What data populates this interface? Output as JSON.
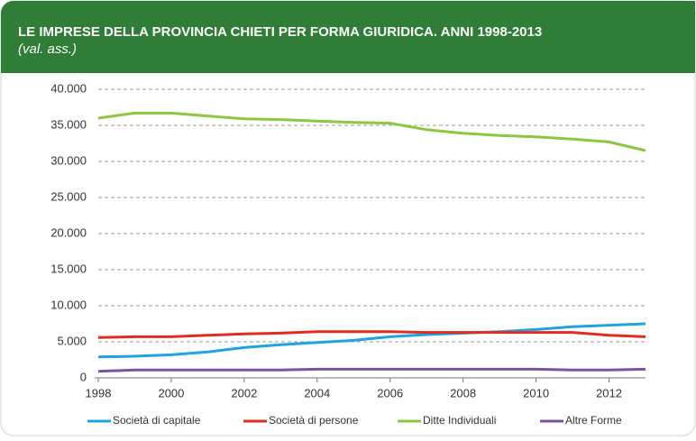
{
  "chart_data": {
    "type": "line",
    "title": "LE IMPRESE DELLA PROVINCIA CHIETI PER FORMA GIURIDICA. ANNI 1998-2013",
    "subtitle": "(val. ass.)",
    "x": [
      1998,
      1999,
      2000,
      2001,
      2002,
      2003,
      2004,
      2005,
      2006,
      2007,
      2008,
      2009,
      2010,
      2011,
      2012,
      2013
    ],
    "xlim": [
      1998,
      2013
    ],
    "xticks": [
      1998,
      2000,
      2002,
      2004,
      2006,
      2008,
      2010,
      2012
    ],
    "ylim": [
      0,
      40000
    ],
    "yticks": [
      0,
      {
        "value": 5000,
        "label": "5.000"
      },
      {
        "value": 10000,
        "label": "10.000"
      },
      {
        "value": 15000,
        "label": "15.000"
      },
      {
        "value": 20000,
        "label": "20.000"
      },
      {
        "value": 25000,
        "label": "25.000"
      },
      {
        "value": 30000,
        "label": "30.000"
      },
      {
        "value": 35000,
        "label": "35.000"
      },
      {
        "value": 40000,
        "label": "40.000"
      }
    ],
    "grid": true,
    "legend": "bottom",
    "series": [
      {
        "name": "Società di capitale",
        "color": "#1ea4e3",
        "values": [
          2900,
          3000,
          3200,
          3600,
          4200,
          4600,
          4900,
          5200,
          5700,
          6000,
          6200,
          6400,
          6700,
          7100,
          7300,
          7500
        ]
      },
      {
        "name": "Società di persone",
        "color": "#e42b1f",
        "values": [
          5600,
          5700,
          5700,
          5900,
          6100,
          6200,
          6400,
          6400,
          6400,
          6300,
          6300,
          6300,
          6300,
          6300,
          5900,
          5700
        ]
      },
      {
        "name": "Ditte Individuali",
        "color": "#8dc63f",
        "values": [
          36000,
          36700,
          36700,
          36300,
          35900,
          35800,
          35600,
          35400,
          35300,
          34400,
          33900,
          33600,
          33400,
          33100,
          32700,
          31500
        ]
      },
      {
        "name": "Altre Forme",
        "color": "#7b52a6",
        "values": [
          900,
          1100,
          1100,
          1100,
          1100,
          1100,
          1200,
          1200,
          1200,
          1200,
          1200,
          1200,
          1200,
          1100,
          1100,
          1200
        ]
      }
    ]
  }
}
